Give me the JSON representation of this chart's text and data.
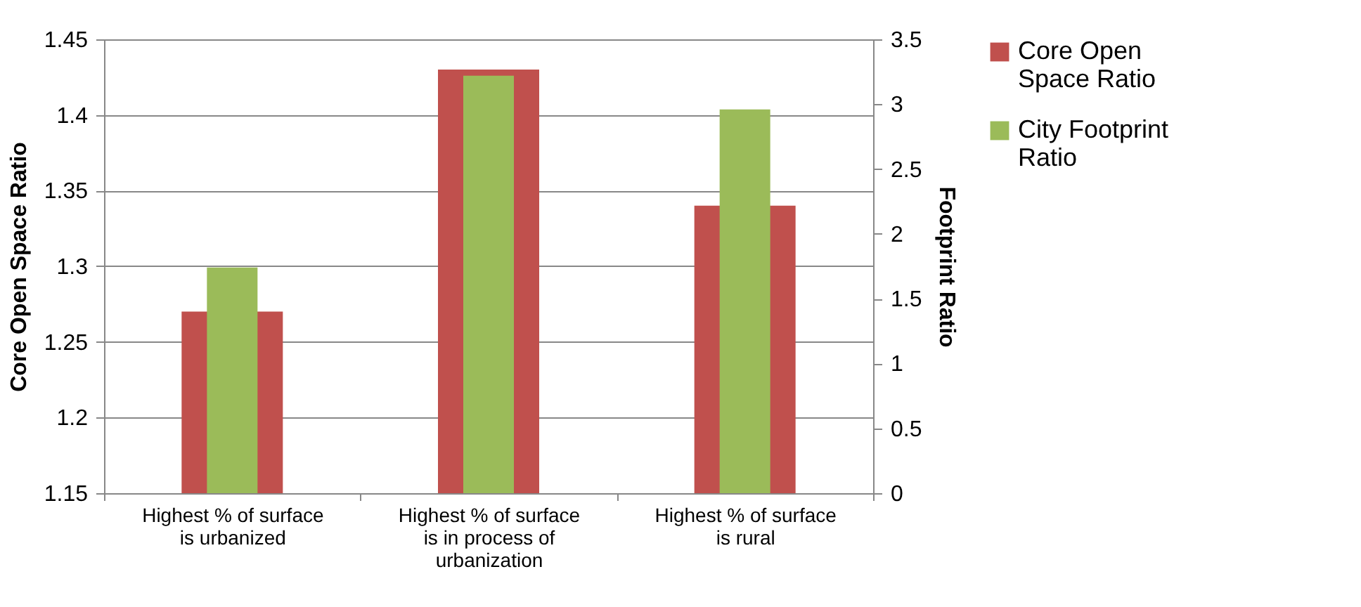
{
  "chart_data": {
    "type": "bar",
    "categories": [
      "Highest % of surface is urbanized",
      "Highest % of surface is in process of urbanization",
      "Highest % of surface is rural"
    ],
    "series": [
      {
        "name": "Core Open Space Ratio",
        "color": "#c0504d",
        "values": [
          1.27,
          1.43,
          1.34
        ]
      },
      {
        "name": "City Footprint Ratio",
        "color": "#9bbb59",
        "values": [
          1.74,
          3.22,
          2.96
        ],
        "axis": "y2"
      }
    ],
    "ylabel": "Core Open Space Ratio",
    "y2label": "Footprint Ratio",
    "ylim": [
      1.15,
      1.45
    ],
    "yticks": [
      1.15,
      1.2,
      1.25,
      1.3,
      1.35,
      1.4,
      1.45
    ],
    "y2lim": [
      0,
      3.5
    ],
    "y2ticks": [
      0,
      0.5,
      1,
      1.5,
      2,
      2.5,
      3,
      3.5
    ],
    "grid": "y",
    "legend": "right"
  }
}
